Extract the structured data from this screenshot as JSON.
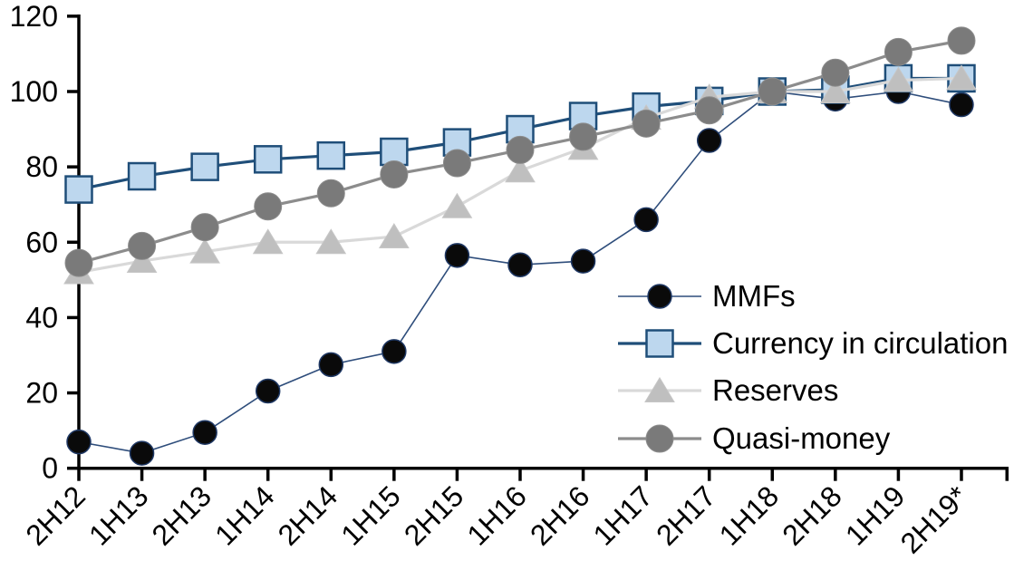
{
  "chart_data": {
    "type": "line",
    "title": "",
    "xlabel": "",
    "ylabel": "",
    "categories": [
      "2H12",
      "1H13",
      "2H13",
      "1H14",
      "2H14",
      "1H15",
      "2H15",
      "1H16",
      "2H16",
      "1H17",
      "2H17",
      "1H18",
      "2H18",
      "1H19",
      "2H19*"
    ],
    "yticks": [
      0,
      20,
      40,
      60,
      80,
      100,
      120
    ],
    "ylim": [
      0,
      120
    ],
    "grid": false,
    "legend_position": "inside-right",
    "axis_color": "#000000",
    "series": [
      {
        "name": "MMFs",
        "marker": "circle",
        "line_color": "#2e4d7b",
        "line_width": 1.6,
        "marker_fill": "#0a0a0a",
        "marker_stroke": "#1f3864",
        "marker_stroke_width": 1.5,
        "marker_size": 26,
        "values": [
          7,
          4,
          9.5,
          20.5,
          27.5,
          31,
          56.5,
          54,
          55,
          66,
          87,
          100,
          98,
          100,
          96.5
        ]
      },
      {
        "name": "Currency in circulation",
        "marker": "square",
        "line_color": "#1f4e79",
        "line_width": 3.2,
        "marker_fill": "#bdd7ee",
        "marker_stroke": "#1f4e79",
        "marker_stroke_width": 2.5,
        "marker_size": 29,
        "values": [
          74,
          77.5,
          80,
          82,
          83,
          84,
          86.5,
          90,
          93.5,
          96,
          97.5,
          100,
          100.5,
          103.5,
          103.5
        ]
      },
      {
        "name": "Reserves",
        "marker": "triangle",
        "line_color": "#d9d9d9",
        "line_width": 3.2,
        "marker_fill": "#bfbfbf",
        "marker_stroke": "#c6c6c6",
        "marker_stroke_width": 1,
        "marker_size": 32,
        "values": [
          52,
          55,
          57.5,
          60,
          60,
          61.5,
          69.5,
          79,
          85,
          93,
          98.5,
          100,
          100,
          103,
          103.5
        ]
      },
      {
        "name": "Quasi-money",
        "marker": "circle",
        "line_color": "#8c8c8c",
        "line_width": 3.2,
        "marker_fill": "#7a7a7a",
        "marker_stroke": "#8c8c8c",
        "marker_stroke_width": 1,
        "marker_size": 30,
        "values": [
          54.5,
          59,
          64,
          69.5,
          73,
          78,
          81,
          84.5,
          88,
          91.5,
          95,
          100,
          105,
          110.5,
          113.5
        ]
      }
    ]
  }
}
